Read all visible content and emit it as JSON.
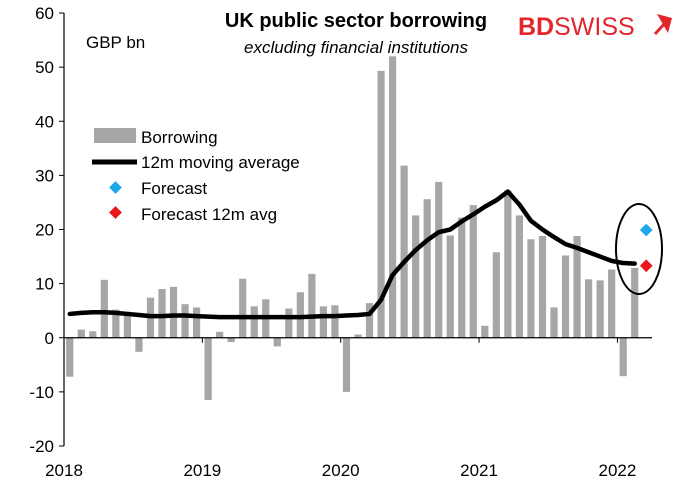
{
  "brand": {
    "name_bold": "BD",
    "name_rest": "SWISS",
    "color": "#e3262b"
  },
  "chart_data": {
    "type": "bar",
    "title": "UK public sector borrowing",
    "subtitle": "excluding financial institutions",
    "unit_label": "GBP bn",
    "ylim": [
      -20,
      60
    ],
    "yticks": [
      -20,
      -10,
      0,
      10,
      20,
      30,
      40,
      50,
      60
    ],
    "xticks": [
      "2018",
      "2019",
      "2020",
      "2021",
      "2022"
    ],
    "grid": false,
    "legend_position": "upper-left",
    "series": [
      {
        "name": "Borrowing",
        "type": "bar",
        "color": "#a6a6a6",
        "values": [
          -7.2,
          1.5,
          1.2,
          10.7,
          5.2,
          4.8,
          -2.6,
          7.4,
          9.0,
          9.4,
          6.2,
          5.6,
          -11.5,
          1.1,
          -0.8,
          10.9,
          5.8,
          7.1,
          -1.6,
          5.4,
          8.4,
          11.8,
          5.8,
          6.0,
          -10.0,
          0.6,
          6.4,
          49.3,
          52.0,
          31.8,
          22.6,
          25.6,
          28.8,
          18.9,
          22.2,
          24.5,
          2.2,
          15.8,
          27.2,
          22.6,
          18.2,
          18.8,
          5.6,
          15.2,
          18.8,
          10.8,
          10.6,
          12.6,
          -7.1,
          12.9
        ]
      },
      {
        "name": "12m moving average",
        "type": "line",
        "color": "#000000",
        "values": [
          4.4,
          4.6,
          4.7,
          4.7,
          4.6,
          4.4,
          4.2,
          4.0,
          4.0,
          4.1,
          4.1,
          4.0,
          3.9,
          3.8,
          3.8,
          3.8,
          3.8,
          3.8,
          3.8,
          3.8,
          3.8,
          3.9,
          4.0,
          4.0,
          4.1,
          4.2,
          4.4,
          7.0,
          11.6,
          14.0,
          16.2,
          18.0,
          19.5,
          20.0,
          21.5,
          22.8,
          24.2,
          25.4,
          27.0,
          24.6,
          21.6,
          20.0,
          18.6,
          17.3,
          16.6,
          15.8,
          15.0,
          14.2,
          13.8,
          13.7
        ]
      },
      {
        "name": "Forecast",
        "type": "point",
        "color": "#1ba9e8",
        "index": 50,
        "value": 19.9
      },
      {
        "name": "Forecast 12m avg",
        "type": "point",
        "color": "#e8161b",
        "index": 50,
        "value": 13.3
      }
    ]
  }
}
